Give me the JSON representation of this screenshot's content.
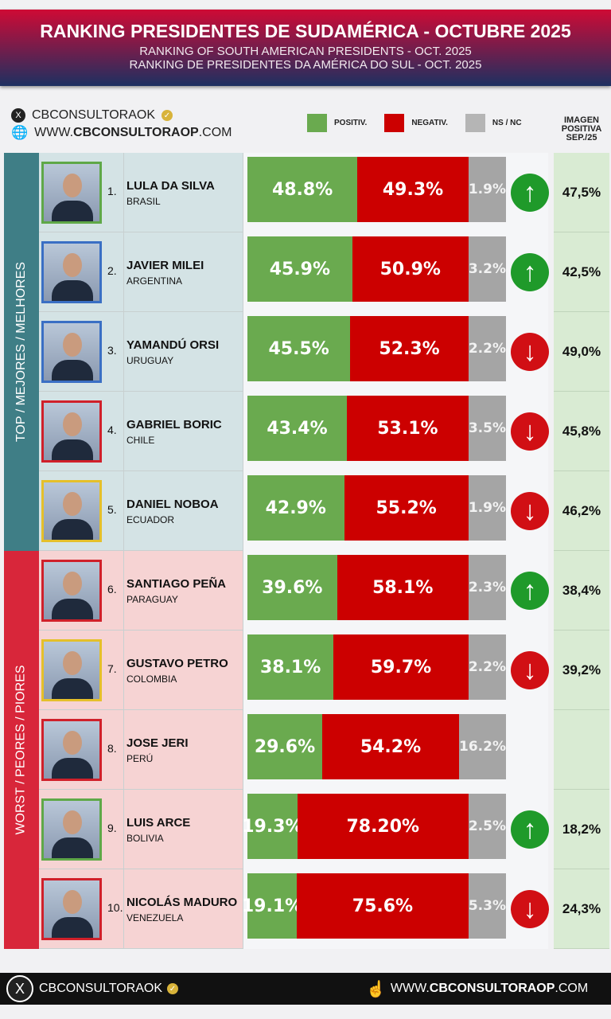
{
  "header": {
    "title": "RANKING PRESIDENTES DE SUDAMÉRICA - OCTUBRE 2025",
    "subtitle_en": "RANKING OF SOUTH AMERICAN PRESIDENTS - OCT. 2025",
    "subtitle_pt": "RANKING DE PRESIDENTES DA AMÉRICA DO SUL - OCT. 2025"
  },
  "social": {
    "x_handle": "CBCONSULTORAOK",
    "website_prefix": "WWW.",
    "website_main": "CBCONSULTORAOP",
    "website_suffix": ".COM"
  },
  "legend": {
    "positive": "POSITIV.",
    "negative": "NEGATIV.",
    "nsnc": "NS / NC",
    "prev_header": [
      "IMAGEN",
      "POSITIVA",
      "SEP./25"
    ]
  },
  "colors": {
    "positive": "#6aaa4f",
    "negative": "#cc0000",
    "nsnc": "#a5a5a5",
    "top": "#3f7e86",
    "worst": "#d8263a",
    "up": "#1f9a2a",
    "down": "#d10f14"
  },
  "groups": {
    "top": "TOP / MEJORES / MELHORES",
    "worst": "WORST / PEORES / PIORES"
  },
  "chart_data": {
    "type": "bar",
    "stacked": true,
    "orientation": "horizontal",
    "categories": [
      "LULA DA SILVA",
      "JAVIER MILEI",
      "YAMANDÚ ORSI",
      "GABRIEL BORIC",
      "DANIEL NOBOA",
      "SANTIAGO PEÑA",
      "GUSTAVO PETRO",
      "JOSE JERI",
      "LUIS ARCE",
      "NICOLÁS MADURO"
    ],
    "series": [
      {
        "name": "POSITIV.",
        "values": [
          48.8,
          45.9,
          45.5,
          43.4,
          42.9,
          39.6,
          38.1,
          29.6,
          19.3,
          19.1
        ]
      },
      {
        "name": "NEGATIV.",
        "values": [
          49.3,
          50.9,
          52.3,
          53.1,
          55.2,
          58.1,
          59.7,
          54.2,
          78.2,
          75.6
        ]
      },
      {
        "name": "NS / NC",
        "values": [
          1.9,
          3.2,
          2.2,
          3.5,
          1.9,
          2.3,
          2.2,
          16.2,
          2.5,
          5.3
        ]
      }
    ]
  },
  "rows": [
    {
      "rank": "1.",
      "name": "LULA DA SILVA",
      "country": "BRASIL",
      "pos": "48.8%",
      "neg": "49.3%",
      "ns": "1.9%",
      "trend": "up",
      "prev": "47,5%",
      "frame": "#5fa848"
    },
    {
      "rank": "2.",
      "name": "JAVIER MILEI",
      "country": "ARGENTINA",
      "pos": "45.9%",
      "neg": "50.9%",
      "ns": "3.2%",
      "trend": "up",
      "prev": "42,5%",
      "frame": "#3a6fc4"
    },
    {
      "rank": "3.",
      "name": "YAMANDÚ ORSI",
      "country": "URUGUAY",
      "pos": "45.5%",
      "neg": "52.3%",
      "ns": "2.2%",
      "trend": "down",
      "prev": "49,0%",
      "frame": "#3a6fc4"
    },
    {
      "rank": "4.",
      "name": "GABRIEL BORIC",
      "country": "CHILE",
      "pos": "43.4%",
      "neg": "53.1%",
      "ns": "3.5%",
      "trend": "down",
      "prev": "45,8%",
      "frame": "#d0202a"
    },
    {
      "rank": "5.",
      "name": "DANIEL NOBOA",
      "country": "ECUADOR",
      "pos": "42.9%",
      "neg": "55.2%",
      "ns": "1.9%",
      "trend": "down",
      "prev": "46,2%",
      "frame": "#e5c02a"
    },
    {
      "rank": "6.",
      "name": "SANTIAGO PEÑA",
      "country": "PARAGUAY",
      "pos": "39.6%",
      "neg": "58.1%",
      "ns": "2.3%",
      "trend": "up",
      "prev": "38,4%",
      "frame": "#d0202a"
    },
    {
      "rank": "7.",
      "name": "GUSTAVO PETRO",
      "country": "COLOMBIA",
      "pos": "38.1%",
      "neg": "59.7%",
      "ns": "2.2%",
      "trend": "down",
      "prev": "39,2%",
      "frame": "#e5c02a"
    },
    {
      "rank": "8.",
      "name": "JOSE JERI",
      "country": "PERÚ",
      "pos": "29.6%",
      "neg": "54.2%",
      "ns": "16.2%",
      "trend": "",
      "prev": "",
      "frame": "#d0202a"
    },
    {
      "rank": "9.",
      "name": "LUIS ARCE",
      "country": "BOLIVIA",
      "pos": "19.3%",
      "neg": "78.20%",
      "ns": "2.5%",
      "trend": "up",
      "prev": "18,2%",
      "frame": "#5fa848"
    },
    {
      "rank": "10.",
      "name": "NICOLÁS MADURO",
      "country": "VENEZUELA",
      "pos": "19.1%",
      "neg": "75.6%",
      "ns": "5.3%",
      "trend": "down",
      "prev": "24,3%",
      "frame": "#d0202a"
    }
  ],
  "footer": {
    "x_handle": "CBCONSULTORAOK",
    "website_prefix": "WWW.",
    "website_main": "CBCONSULTORAOP",
    "website_suffix": ".COM"
  }
}
